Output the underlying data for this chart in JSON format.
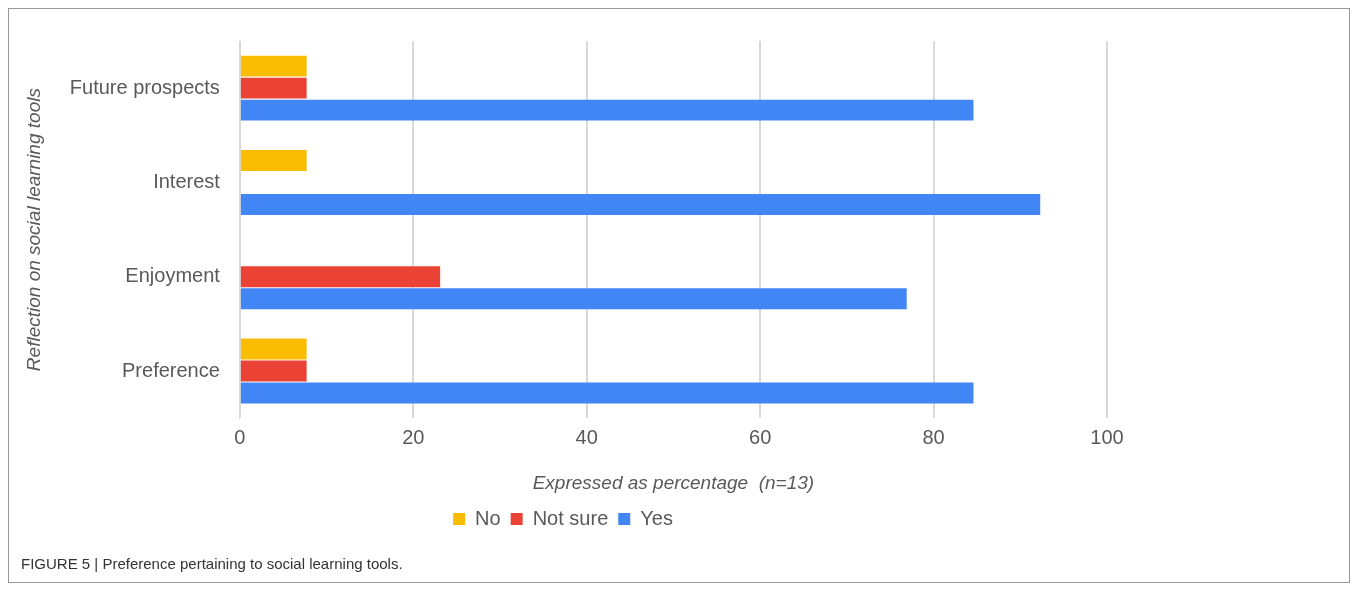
{
  "chart_data": {
    "type": "bar",
    "orientation": "horizontal",
    "categories": [
      "Future prospects",
      "Interest",
      "Enjoyment",
      "Preference"
    ],
    "series": [
      {
        "name": "No",
        "color": "#fbbc04",
        "values": [
          7.7,
          7.7,
          0,
          7.7
        ]
      },
      {
        "name": "Not sure",
        "color": "#ea4335",
        "values": [
          7.7,
          0,
          23.1,
          7.7
        ]
      },
      {
        "name": "Yes",
        "color": "#4285f4",
        "values": [
          84.6,
          92.3,
          76.9,
          84.6
        ]
      }
    ],
    "xlim": [
      0,
      100
    ],
    "xticks": [
      0,
      20,
      40,
      60,
      80,
      100
    ],
    "grid": "x",
    "legend": "bottom",
    "xlabel": "Expressed as percentage  (n=13)",
    "ylabel": "Reflection on social learning tools",
    "annotations": [
      "FIGURE 5 | Preference pertaining to social learning tools."
    ]
  }
}
